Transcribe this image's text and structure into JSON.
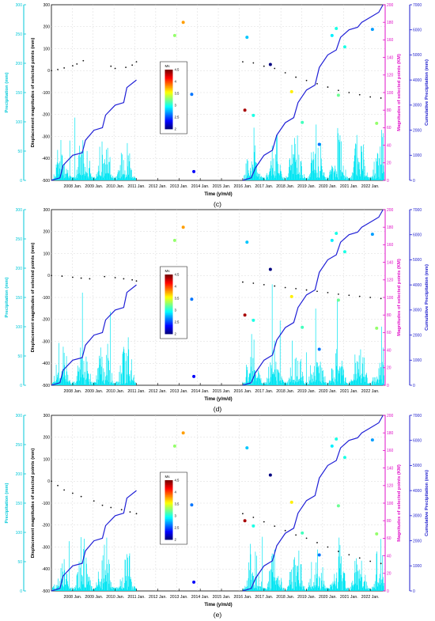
{
  "colors": {
    "precip_bar": "#00e5f2",
    "cumulative_line": "#1f1fd6",
    "left_axis": "#00c8d8",
    "magnitude_axis": "#e010c8",
    "cumulative_axis": "#1a1acc",
    "displacement_point": "#111111",
    "grid": "#d8d8d8"
  },
  "shared": {
    "x_title": "Time (y/m/d)",
    "x_ticks": [
      "2008 Jan.",
      "2009 Jan.",
      "2010 Jan.",
      "2011 Jan.",
      "2012 Jan.",
      "2013 Jan.",
      "2014 Jan.",
      "2015 Jan.",
      "2016 Jan.",
      "2017 Jan.",
      "2018 Jan.",
      "2019 Jan.",
      "2020 Jan.",
      "2021 Jan.",
      "2022 Jan."
    ],
    "axis_precip_title": "Precipitation (mm)",
    "axis_precip_ticks": [
      "0",
      "50",
      "100",
      "150",
      "200",
      "250",
      "300"
    ],
    "axis_disp_title": "Displacement magnitudes of selected points (mm)",
    "axis_disp_ticks": [
      "-500",
      "-400",
      "-300",
      "-200",
      "-100",
      "0",
      "100",
      "200",
      "300"
    ],
    "axis_mag_title": "Magnitudes of selected points (KM)",
    "axis_mag_ticks": [
      "0",
      "20",
      "40",
      "60",
      "80",
      "100",
      "120",
      "140",
      "160",
      "180",
      "200"
    ],
    "axis_cum_title": "Cumulative Precipitation (mm)",
    "axis_cum_ticks": [
      "0",
      "1000",
      "2000",
      "3000",
      "4000",
      "5000",
      "6000",
      "7000"
    ],
    "colorbar_title": "Ms",
    "colorbar_ticks": [
      "2",
      "2.5",
      "3",
      "3.5",
      "4",
      "4.5"
    ]
  },
  "chart_data": [
    {
      "panel_label": "(c)",
      "type": "line",
      "xlim": [
        2007.0,
        2022.7
      ],
      "ylim_precipitation": [
        0,
        300
      ],
      "ylim_displacement": [
        -500,
        300
      ],
      "ylim_magnitude": [
        0,
        200
      ],
      "ylim_cumulative": [
        0,
        7000
      ],
      "cumulative_precipitation": {
        "x": [
          2007.0,
          2007.4,
          2007.55,
          2008.0,
          2008.45,
          2008.6,
          2009.0,
          2009.4,
          2009.55,
          2010.0,
          2010.4,
          2010.55,
          2011.0,
          2015.99,
          2016.0,
          2016.4,
          2016.6,
          2017.0,
          2017.4,
          2017.6,
          2018.0,
          2018.4,
          2018.6,
          2019.0,
          2019.4,
          2019.6,
          2020.0,
          2020.4,
          2020.6,
          2021.0,
          2021.4,
          2021.6,
          2022.0,
          2022.4,
          2022.6
        ],
        "y": [
          0,
          100,
          600,
          1000,
          1100,
          1600,
          2000,
          2100,
          2600,
          3000,
          3100,
          3700,
          4000,
          null,
          0,
          100,
          500,
          1000,
          1200,
          1800,
          2300,
          2500,
          3100,
          3600,
          3800,
          4500,
          5000,
          5200,
          5700,
          6000,
          6100,
          6300,
          6500,
          6700,
          7000
        ]
      },
      "displacement": {
        "x": [
          2007.0,
          2007.3,
          2007.6,
          2008.0,
          2008.2,
          2008.5,
          2009.8,
          2010.0,
          2010.5,
          2010.8,
          2011.0,
          2016.0,
          2016.5,
          2017.0,
          2017.5,
          2018.0,
          2018.5,
          2019.0,
          2019.5,
          2020.0,
          2020.5,
          2021.0,
          2021.5,
          2022.0,
          2022.5
        ],
        "y": [
          0,
          5,
          12,
          22,
          30,
          45,
          20,
          10,
          15,
          25,
          40,
          40,
          35,
          20,
          10,
          -10,
          -30,
          -45,
          -60,
          -75,
          -90,
          -100,
          -110,
          -120,
          -125
        ]
      },
      "earthquakes": [
        {
          "x": 2012.8,
          "km": 165,
          "ms": 3.3
        },
        {
          "x": 2013.2,
          "km": 180,
          "ms": 3.8
        },
        {
          "x": 2013.6,
          "km": 98,
          "ms": 2.6
        },
        {
          "x": 2013.7,
          "km": 10,
          "ms": 2.3
        },
        {
          "x": 2016.2,
          "km": 163,
          "ms": 2.8
        },
        {
          "x": 2016.1,
          "km": 80,
          "ms": 4.4
        },
        {
          "x": 2016.5,
          "km": 74,
          "ms": 3.0
        },
        {
          "x": 2017.3,
          "km": 132,
          "ms": 1.8
        },
        {
          "x": 2018.3,
          "km": 101,
          "ms": 3.6
        },
        {
          "x": 2018.8,
          "km": 66,
          "ms": 3.1
        },
        {
          "x": 2019.6,
          "km": 41,
          "ms": 2.6
        },
        {
          "x": 2020.2,
          "km": 165,
          "ms": 2.9
        },
        {
          "x": 2020.4,
          "km": 173,
          "ms": 3.0
        },
        {
          "x": 2020.5,
          "km": 97,
          "ms": 3.2
        },
        {
          "x": 2020.8,
          "km": 152,
          "ms": 3.0
        },
        {
          "x": 2022.1,
          "km": 172,
          "ms": 2.7
        },
        {
          "x": 2022.3,
          "km": 65,
          "ms": 3.3
        }
      ]
    },
    {
      "panel_label": "(d)",
      "type": "line",
      "xlim": [
        2007.0,
        2022.7
      ],
      "ylim_precipitation": [
        0,
        300
      ],
      "ylim_displacement": [
        -500,
        300
      ],
      "ylim_magnitude": [
        0,
        200
      ],
      "ylim_cumulative": [
        0,
        7000
      ],
      "cumulative_precipitation": {
        "x": [
          2007.0,
          2007.4,
          2007.55,
          2008.0,
          2008.45,
          2008.6,
          2009.0,
          2009.4,
          2009.55,
          2010.0,
          2010.4,
          2010.55,
          2011.0,
          2015.99,
          2016.0,
          2016.4,
          2016.6,
          2017.0,
          2017.4,
          2017.6,
          2018.0,
          2018.4,
          2018.6,
          2019.0,
          2019.4,
          2019.6,
          2020.0,
          2020.4,
          2020.6,
          2021.0,
          2021.4,
          2021.6,
          2022.0,
          2022.4,
          2022.6
        ],
        "y": [
          0,
          100,
          600,
          1000,
          1100,
          1600,
          2000,
          2100,
          2600,
          3000,
          3100,
          3700,
          4000,
          null,
          0,
          100,
          500,
          1000,
          1200,
          1800,
          2300,
          2500,
          3100,
          3600,
          3800,
          4500,
          5000,
          5200,
          5700,
          6000,
          6100,
          6300,
          6500,
          6700,
          7000
        ]
      },
      "displacement": {
        "x": [
          2007.0,
          2007.5,
          2008.0,
          2008.4,
          2008.8,
          2009.5,
          2010.0,
          2010.4,
          2010.8,
          2011.0,
          2016.0,
          2016.5,
          2017.0,
          2017.5,
          2018.0,
          2018.5,
          2019.0,
          2019.5,
          2020.0,
          2020.5,
          2021.0,
          2021.5,
          2022.0,
          2022.5
        ],
        "y": [
          0,
          -3,
          -8,
          -12,
          -15,
          -5,
          -10,
          -15,
          -20,
          -25,
          -30,
          -35,
          -42,
          -48,
          -55,
          -60,
          -66,
          -72,
          -78,
          -85,
          -90,
          -95,
          -100,
          -105
        ]
      },
      "earthquakes": [
        {
          "x": 2012.8,
          "km": 165,
          "ms": 3.3
        },
        {
          "x": 2013.2,
          "km": 180,
          "ms": 3.8
        },
        {
          "x": 2013.6,
          "km": 98,
          "ms": 2.6
        },
        {
          "x": 2013.7,
          "km": 10,
          "ms": 2.3
        },
        {
          "x": 2016.2,
          "km": 163,
          "ms": 2.8
        },
        {
          "x": 2016.1,
          "km": 80,
          "ms": 4.4
        },
        {
          "x": 2016.5,
          "km": 74,
          "ms": 3.0
        },
        {
          "x": 2017.3,
          "km": 132,
          "ms": 1.8
        },
        {
          "x": 2018.3,
          "km": 101,
          "ms": 3.6
        },
        {
          "x": 2018.8,
          "km": 66,
          "ms": 3.1
        },
        {
          "x": 2019.6,
          "km": 41,
          "ms": 2.6
        },
        {
          "x": 2020.2,
          "km": 165,
          "ms": 2.9
        },
        {
          "x": 2020.4,
          "km": 173,
          "ms": 3.0
        },
        {
          "x": 2020.5,
          "km": 97,
          "ms": 3.2
        },
        {
          "x": 2020.8,
          "km": 152,
          "ms": 3.0
        },
        {
          "x": 2022.1,
          "km": 172,
          "ms": 2.7
        },
        {
          "x": 2022.3,
          "km": 65,
          "ms": 3.3
        }
      ]
    },
    {
      "panel_label": "(e)",
      "type": "line",
      "xlim": [
        2007.0,
        2022.7
      ],
      "ylim_precipitation": [
        0,
        300
      ],
      "ylim_displacement": [
        -500,
        300
      ],
      "ylim_magnitude": [
        0,
        200
      ],
      "ylim_cumulative": [
        0,
        7000
      ],
      "cumulative_precipitation": {
        "x": [
          2007.0,
          2007.4,
          2007.55,
          2008.0,
          2008.45,
          2008.6,
          2009.0,
          2009.4,
          2009.55,
          2010.0,
          2010.4,
          2010.55,
          2011.0,
          2015.99,
          2016.0,
          2016.4,
          2016.6,
          2017.0,
          2017.4,
          2017.6,
          2018.0,
          2018.4,
          2018.6,
          2019.0,
          2019.4,
          2019.6,
          2020.0,
          2020.4,
          2020.6,
          2021.0,
          2021.4,
          2021.6,
          2022.0,
          2022.4,
          2022.6
        ],
        "y": [
          0,
          100,
          600,
          1000,
          1100,
          1600,
          2000,
          2100,
          2600,
          3000,
          3100,
          3700,
          4000,
          null,
          0,
          100,
          500,
          1000,
          1200,
          1800,
          2300,
          2500,
          3100,
          3600,
          3800,
          4500,
          5000,
          5200,
          5700,
          6000,
          6100,
          6300,
          6500,
          6700,
          7000
        ]
      },
      "displacement": {
        "x": [
          2007.0,
          2007.3,
          2007.6,
          2008.0,
          2008.4,
          2009.0,
          2009.4,
          2009.8,
          2010.3,
          2010.7,
          2011.0,
          2016.0,
          2016.5,
          2017.0,
          2017.5,
          2018.0,
          2018.5,
          2019.0,
          2019.5,
          2020.0,
          2020.5,
          2021.0,
          2021.5,
          2022.0,
          2022.5
        ],
        "y": [
          0,
          -20,
          -40,
          -55,
          -70,
          -90,
          -110,
          -120,
          -130,
          -140,
          -148,
          -148,
          -165,
          -185,
          -205,
          -225,
          -245,
          -260,
          -280,
          -300,
          -320,
          -335,
          -350,
          -365,
          -375
        ]
      },
      "earthquakes": [
        {
          "x": 2012.8,
          "km": 165,
          "ms": 3.3
        },
        {
          "x": 2013.2,
          "km": 180,
          "ms": 3.8
        },
        {
          "x": 2013.6,
          "km": 98,
          "ms": 2.6
        },
        {
          "x": 2013.7,
          "km": 10,
          "ms": 2.3
        },
        {
          "x": 2016.2,
          "km": 163,
          "ms": 2.8
        },
        {
          "x": 2016.1,
          "km": 80,
          "ms": 4.4
        },
        {
          "x": 2016.5,
          "km": 74,
          "ms": 3.0
        },
        {
          "x": 2017.3,
          "km": 132,
          "ms": 1.8
        },
        {
          "x": 2018.3,
          "km": 101,
          "ms": 3.6
        },
        {
          "x": 2018.8,
          "km": 66,
          "ms": 3.1
        },
        {
          "x": 2019.6,
          "km": 41,
          "ms": 2.6
        },
        {
          "x": 2020.2,
          "km": 165,
          "ms": 2.9
        },
        {
          "x": 2020.4,
          "km": 173,
          "ms": 3.0
        },
        {
          "x": 2020.5,
          "km": 97,
          "ms": 3.2
        },
        {
          "x": 2020.8,
          "km": 152,
          "ms": 3.0
        },
        {
          "x": 2022.1,
          "km": 172,
          "ms": 2.7
        },
        {
          "x": 2022.3,
          "km": 65,
          "ms": 3.3
        }
      ]
    }
  ]
}
